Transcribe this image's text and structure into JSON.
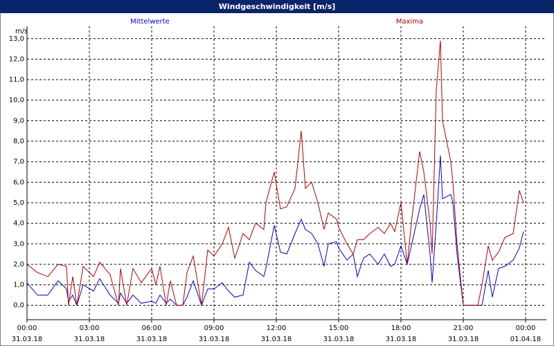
{
  "chart_data": {
    "type": "line",
    "title": "Windgeschwindigkeit [m/s]",
    "ylabel": "m/s",
    "x": [
      0,
      0.5,
      1,
      1.5,
      1.9,
      2,
      2.2,
      2.4,
      2.7,
      3.2,
      3.5,
      4,
      4.4,
      4.5,
      4.8,
      5.1,
      5.5,
      6,
      6.2,
      6.4,
      6.7,
      6.9,
      7.2,
      7.5,
      7.7,
      8,
      8.4,
      8.7,
      9,
      9.4,
      9.7,
      10,
      10.4,
      10.7,
      11,
      11.4,
      11.5,
      11.9,
      12.2,
      12.5,
      12.9,
      13.2,
      13.4,
      13.7,
      14,
      14.3,
      14.5,
      14.9,
      15,
      15.4,
      15.7,
      15.9,
      16.2,
      16.5,
      16.9,
      17.2,
      17.5,
      17.7,
      18,
      18.3,
      18.5,
      18.9,
      19.1,
      19.4,
      19.5,
      19.7,
      19.9,
      20,
      20.4,
      20.5,
      20.7,
      21,
      21.7,
      21.9,
      22.2,
      22.4,
      22.7,
      23,
      23.4,
      23.7,
      23.9
    ],
    "series": [
      {
        "name": "Mittelwerte",
        "color": "#0000cc",
        "values": [
          1.1,
          0.5,
          0.5,
          1.2,
          0.8,
          0.2,
          0.5,
          0.0,
          1.0,
          0.7,
          1.3,
          0.5,
          0.1,
          0.6,
          0.1,
          0.5,
          0.1,
          0.2,
          0.1,
          0.5,
          0.1,
          0.3,
          0.0,
          0.0,
          0.4,
          1.2,
          0.0,
          0.8,
          0.8,
          1.1,
          0.7,
          0.4,
          0.5,
          2.1,
          1.7,
          1.4,
          1.8,
          3.9,
          2.6,
          2.5,
          3.5,
          4.2,
          3.7,
          3.5,
          3.0,
          1.9,
          3.0,
          3.1,
          2.8,
          2.2,
          2.5,
          1.4,
          2.3,
          2.5,
          2.0,
          2.5,
          1.9,
          2.0,
          2.9,
          2.0,
          2.9,
          4.7,
          5.4,
          2.5,
          1.1,
          4.0,
          7.3,
          5.2,
          5.4,
          5.0,
          2.5,
          0.0,
          0.0,
          0.0,
          1.7,
          0.4,
          1.8,
          1.9,
          2.2,
          2.8,
          3.6
        ]
      },
      {
        "name": "Maxima",
        "color": "#b00000",
        "values": [
          2.0,
          1.6,
          1.4,
          2.0,
          1.9,
          0.0,
          1.4,
          0.0,
          1.9,
          1.4,
          2.1,
          1.5,
          0.0,
          1.8,
          0.0,
          1.8,
          1.1,
          1.8,
          1.0,
          1.9,
          0.0,
          1.2,
          0.0,
          0.0,
          1.6,
          2.4,
          0.0,
          2.7,
          2.4,
          3.0,
          3.8,
          2.3,
          3.5,
          3.2,
          4.0,
          3.7,
          5.0,
          6.5,
          4.7,
          4.8,
          5.7,
          8.5,
          5.7,
          6.0,
          5.0,
          3.7,
          4.5,
          4.2,
          3.8,
          3.0,
          2.5,
          3.2,
          3.2,
          3.5,
          3.8,
          3.5,
          4.0,
          3.6,
          5.0,
          2.0,
          4.0,
          7.5,
          6.5,
          4.0,
          2.5,
          10.5,
          12.9,
          9.0,
          7.0,
          6.0,
          3.0,
          0.0,
          0.0,
          1.0,
          2.9,
          2.2,
          2.6,
          3.3,
          3.5,
          5.6,
          5.0
        ]
      }
    ],
    "xlim": [
      0,
      25
    ],
    "xticks": [
      {
        "value": 0,
        "label": "00:00"
      },
      {
        "value": 3,
        "label": "03:00"
      },
      {
        "value": 6,
        "label": "06:00"
      },
      {
        "value": 9,
        "label": "09:00"
      },
      {
        "value": 12,
        "label": "12:00"
      },
      {
        "value": 15,
        "label": "15:00"
      },
      {
        "value": 18,
        "label": "18:00"
      },
      {
        "value": 21,
        "label": "21:00"
      },
      {
        "value": 24,
        "label": "00:00"
      }
    ],
    "xtick_dates": [
      "31.03.18",
      "31.03.18",
      "31.03.18",
      "31.03.18",
      "31.03.18",
      "31.03.18",
      "31.03.18",
      "31.03.18",
      "01.04.18"
    ],
    "ylim": [
      -0.7,
      13.6
    ],
    "yticks": [
      {
        "value": 0,
        "label": "0,0"
      },
      {
        "value": 1,
        "label": "1,0"
      },
      {
        "value": 2,
        "label": "2,0"
      },
      {
        "value": 3,
        "label": "3,0"
      },
      {
        "value": 4,
        "label": "4,0"
      },
      {
        "value": 5,
        "label": "5,0"
      },
      {
        "value": 6,
        "label": "6,0"
      },
      {
        "value": 7,
        "label": "7,0"
      },
      {
        "value": 8,
        "label": "8,0"
      },
      {
        "value": 9,
        "label": "9,0"
      },
      {
        "value": 10,
        "label": "10,0"
      },
      {
        "value": 11,
        "label": "11,0"
      },
      {
        "value": 12,
        "label": "12,0"
      },
      {
        "value": 13,
        "label": "13,0"
      }
    ],
    "grid": true
  }
}
